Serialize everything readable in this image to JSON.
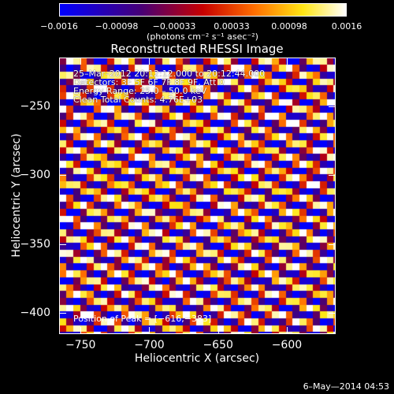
{
  "colorbar": {
    "ticks": [
      "−0.0016",
      "−0.00098",
      "−0.00033",
      "0.00033",
      "0.00098",
      "0.0016"
    ],
    "unit": "(photons cm⁻² s⁻¹ asec⁻²)"
  },
  "plot": {
    "title": "Reconstructed RHESSI Image",
    "annotations": [
      "25–Mar–2012 20:12:12.000 to 20:12:44.000",
      "Detectors: 3F 5F 6F 7F 8F 9F, Att 0",
      "Energy Range: 25.0 – 50.0 keV",
      "Clean    Total Counts: 4.76E+03"
    ],
    "peak_label": "Position of Peak = [−616,−383]",
    "timestamp": "6–May—2014 04:53"
  },
  "chart_data": {
    "type": "heatmap",
    "title": "Reconstructed RHESSI Image",
    "xlabel": "Heliocentric X (arcsec)",
    "ylabel": "Heliocentric Y (arcsec)",
    "xlim": [
      -765,
      -565
    ],
    "ylim": [
      -415,
      -215
    ],
    "x_ticks": [
      -750,
      -700,
      -650,
      -600
    ],
    "y_ticks": [
      -250,
      -300,
      -350,
      -400
    ],
    "x_tick_labels": [
      "−750",
      "−700",
      "−650",
      "−600"
    ],
    "y_tick_labels": [
      "−250",
      "−300",
      "−350",
      "−400"
    ],
    "colorbar_range": [
      -0.0016,
      0.0016
    ],
    "colormap": "blue-purple-red-orange-yellow-white",
    "peak_position": [
      -616,
      -383
    ],
    "pattern": "diagonal fringe stripes"
  }
}
